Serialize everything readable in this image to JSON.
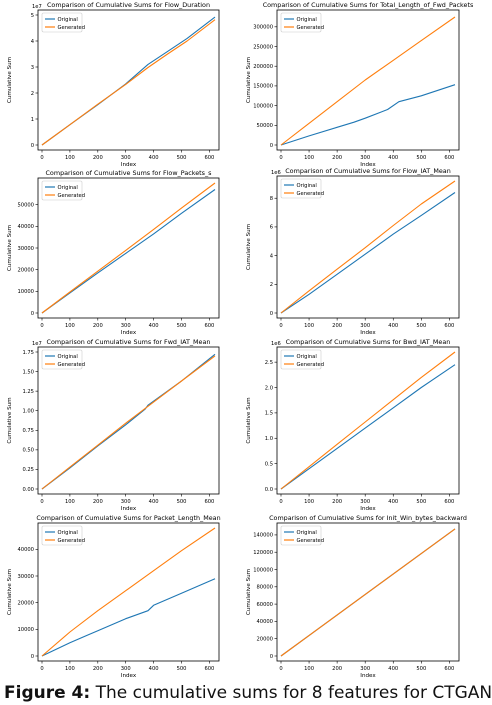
{
  "caption": {
    "label": "Figure 4:",
    "text": "The cumulative sums for 8 features for CTGAN"
  },
  "colors": {
    "original": "#1f77b4",
    "generated": "#ff7f0e"
  },
  "chart_data": [
    {
      "type": "line",
      "title": "Comparison of Cumulative Sums for Flow_Duration",
      "xlabel": "Index",
      "ylabel": "Cumulative Sum",
      "xlim": [
        0,
        620
      ],
      "ylim": [
        0,
        5.0
      ],
      "xticks": [
        "0",
        "100",
        "200",
        "300",
        "400",
        "500",
        "600"
      ],
      "yticks": [
        "0",
        "1",
        "2",
        "3",
        "4",
        "5"
      ],
      "scale_label": "1e7",
      "legend": "upper left",
      "series": [
        {
          "name": "Original",
          "x": [
            0,
            100,
            200,
            300,
            380,
            450,
            520,
            620
          ],
          "values": [
            0,
            0.78,
            1.55,
            2.35,
            3.1,
            3.6,
            4.1,
            4.92
          ]
        },
        {
          "name": "Generated",
          "x": [
            0,
            100,
            200,
            300,
            380,
            450,
            520,
            620
          ],
          "values": [
            0,
            0.78,
            1.57,
            2.33,
            2.98,
            3.5,
            4.0,
            4.82
          ]
        }
      ]
    },
    {
      "type": "line",
      "title": "Comparison of Cumulative Sums for Total_Length_of_Fwd_Packets",
      "xlabel": "Index",
      "ylabel": "Cumulative Sum",
      "xlim": [
        0,
        620
      ],
      "ylim": [
        0,
        330000
      ],
      "xticks": [
        "0",
        "100",
        "200",
        "300",
        "400",
        "500",
        "600"
      ],
      "yticks": [
        "0",
        "50000",
        "100000",
        "150000",
        "200000",
        "250000",
        "300000"
      ],
      "legend": "upper left",
      "series": [
        {
          "name": "Original",
          "x": [
            0,
            100,
            200,
            260,
            300,
            380,
            420,
            500,
            620
          ],
          "values": [
            0,
            23000,
            45000,
            58000,
            68000,
            90000,
            110000,
            125000,
            153000
          ]
        },
        {
          "name": "Generated",
          "x": [
            0,
            100,
            200,
            300,
            400,
            500,
            620
          ],
          "values": [
            0,
            55000,
            110000,
            165000,
            215000,
            265000,
            325000
          ]
        }
      ]
    },
    {
      "type": "line",
      "title": "Comparison of Cumulative Sums for Flow_Packets_s",
      "xlabel": "Index",
      "ylabel": "Cumulative Sum",
      "xlim": [
        0,
        620
      ],
      "ylim": [
        0,
        60000
      ],
      "xticks": [
        "0",
        "100",
        "200",
        "300",
        "400",
        "500",
        "600"
      ],
      "yticks": [
        "0",
        "10000",
        "20000",
        "30000",
        "40000",
        "50000"
      ],
      "legend": "upper left",
      "series": [
        {
          "name": "Original",
          "x": [
            0,
            100,
            200,
            300,
            400,
            500,
            620
          ],
          "values": [
            0,
            9300,
            18500,
            27500,
            36500,
            46000,
            57000
          ]
        },
        {
          "name": "Generated",
          "x": [
            0,
            100,
            200,
            300,
            400,
            500,
            620
          ],
          "values": [
            0,
            9700,
            19300,
            28900,
            38600,
            48400,
            60000
          ]
        }
      ]
    },
    {
      "type": "line",
      "title": "Comparison of Cumulative Sums for Flow_IAT_Mean",
      "xlabel": "Index",
      "ylabel": "Cumulative Sum",
      "xlim": [
        0,
        620
      ],
      "ylim": [
        0,
        9.2
      ],
      "xticks": [
        "0",
        "100",
        "200",
        "300",
        "400",
        "500",
        "600"
      ],
      "yticks": [
        "0",
        "2",
        "4",
        "6",
        "8"
      ],
      "scale_label": "1e6",
      "legend": "upper left",
      "series": [
        {
          "name": "Original",
          "x": [
            0,
            100,
            200,
            300,
            400,
            500,
            620
          ],
          "values": [
            0,
            1.3,
            2.7,
            4.1,
            5.5,
            6.8,
            8.4
          ]
        },
        {
          "name": "Generated",
          "x": [
            0,
            100,
            200,
            300,
            400,
            500,
            620
          ],
          "values": [
            0,
            1.55,
            3.05,
            4.55,
            6.1,
            7.6,
            9.2
          ]
        }
      ]
    },
    {
      "type": "line",
      "title": "Comparison of Cumulative Sums for Fwd_IAT_Mean",
      "xlabel": "Index",
      "ylabel": "Cumulative Sum",
      "xlim": [
        0,
        620
      ],
      "ylim": [
        0,
        1.75
      ],
      "xticks": [
        "0",
        "100",
        "200",
        "300",
        "400",
        "500",
        "600"
      ],
      "yticks": [
        "0.00",
        "0.25",
        "0.50",
        "0.75",
        "1.00",
        "1.25",
        "1.50",
        "1.75"
      ],
      "scale_label": "1e7",
      "legend": "upper left",
      "series": [
        {
          "name": "Original",
          "x": [
            0,
            100,
            200,
            300,
            370,
            380,
            500,
            620
          ],
          "values": [
            0,
            0.27,
            0.55,
            0.82,
            1.02,
            1.07,
            1.38,
            1.72
          ]
        },
        {
          "name": "Generated",
          "x": [
            0,
            100,
            200,
            300,
            400,
            500,
            620
          ],
          "values": [
            0,
            0.28,
            0.56,
            0.84,
            1.11,
            1.38,
            1.7
          ]
        }
      ]
    },
    {
      "type": "line",
      "title": "Comparison of Cumulative Sums for Bwd_IAT_Mean",
      "xlabel": "Index",
      "ylabel": "Cumulative Sum",
      "xlim": [
        0,
        620
      ],
      "ylim": [
        0,
        2.7
      ],
      "xticks": [
        "0",
        "100",
        "200",
        "300",
        "400",
        "500",
        "600"
      ],
      "yticks": [
        "0.0",
        "0.5",
        "1.0",
        "1.5",
        "2.0",
        "2.5"
      ],
      "scale_label": "1e6",
      "legend": "upper left",
      "series": [
        {
          "name": "Original",
          "x": [
            0,
            100,
            200,
            300,
            400,
            500,
            620
          ],
          "values": [
            0,
            0.4,
            0.8,
            1.2,
            1.6,
            2.0,
            2.45
          ]
        },
        {
          "name": "Generated",
          "x": [
            0,
            100,
            200,
            300,
            400,
            500,
            620
          ],
          "values": [
            0,
            0.44,
            0.88,
            1.32,
            1.76,
            2.2,
            2.7
          ]
        }
      ]
    },
    {
      "type": "line",
      "title": "Comparison of Cumulative Sums for Packet_Length_Mean",
      "xlabel": "Index",
      "ylabel": "Cumulative Sum",
      "xlim": [
        0,
        620
      ],
      "ylim": [
        0,
        48000
      ],
      "xticks": [
        "0",
        "100",
        "200",
        "300",
        "400",
        "500",
        "600"
      ],
      "yticks": [
        "0",
        "10000",
        "20000",
        "30000",
        "40000"
      ],
      "legend": "upper left",
      "series": [
        {
          "name": "Original",
          "x": [
            0,
            100,
            200,
            300,
            380,
            400,
            500,
            620
          ],
          "values": [
            0,
            5000,
            9500,
            14000,
            17000,
            19000,
            23500,
            29000
          ]
        },
        {
          "name": "Generated",
          "x": [
            0,
            100,
            200,
            300,
            400,
            500,
            620
          ],
          "values": [
            0,
            9000,
            17000,
            24500,
            32000,
            39500,
            48000
          ]
        }
      ]
    },
    {
      "type": "line",
      "title": "Comparison of Cumulative Sums for Init_Win_bytes_backward",
      "xlabel": "Index",
      "ylabel": "Cumulative Sum",
      "xlim": [
        0,
        620
      ],
      "ylim": [
        0,
        148000
      ],
      "xticks": [
        "0",
        "100",
        "200",
        "300",
        "400",
        "500",
        "600"
      ],
      "yticks": [
        "0",
        "20000",
        "40000",
        "60000",
        "80000",
        "100000",
        "120000",
        "140000"
      ],
      "legend": "upper left",
      "series": [
        {
          "name": "Original",
          "x": [
            0,
            620
          ],
          "values": [
            0,
            147000
          ]
        },
        {
          "name": "Generated",
          "x": [
            0,
            620
          ],
          "values": [
            0,
            147000
          ]
        }
      ]
    }
  ]
}
